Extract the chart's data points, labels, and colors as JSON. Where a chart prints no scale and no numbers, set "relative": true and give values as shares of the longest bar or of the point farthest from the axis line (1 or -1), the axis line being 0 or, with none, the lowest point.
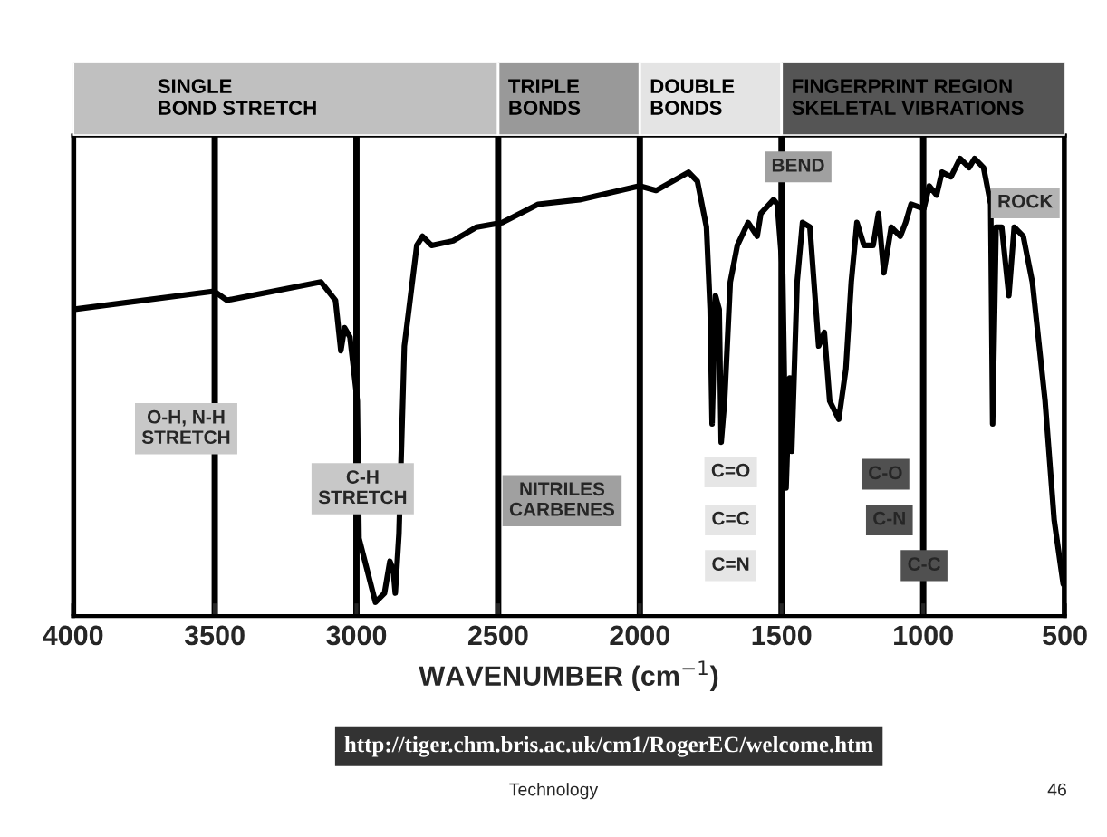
{
  "chart_data": {
    "type": "line",
    "relative": true,
    "xlabel": "WAVENUMBER (cm$^{−1}$)",
    "x": [
      4000,
      3502,
      3457,
      3125,
      3074,
      3055,
      3042,
      3023,
      2997,
      2991,
      2933,
      2901,
      2882,
      2870,
      2863,
      2850,
      2831,
      2787,
      2767,
      2735,
      2659,
      2576,
      2486,
      2359,
      2212,
      2001,
      1943,
      1828,
      1797,
      1765,
      1752,
      1745,
      1733,
      1720,
      1713,
      1701,
      1681,
      1656,
      1618,
      1586,
      1573,
      1528,
      1515,
      1496,
      1484,
      1471,
      1464,
      1445,
      1426,
      1400,
      1369,
      1349,
      1330,
      1298,
      1273,
      1254,
      1234,
      1209,
      1177,
      1158,
      1139,
      1113,
      1081,
      1062,
      1043,
      998,
      979,
      953,
      934,
      902,
      870,
      838,
      819,
      787,
      762,
      755,
      743,
      723,
      698,
      679,
      647,
      615,
      570,
      538,
      506
    ],
    "series": [
      {
        "color": "#000000",
        "values": [
          0.67,
          0.71,
          0.69,
          0.73,
          0.69,
          0.58,
          0.63,
          0.61,
          0.47,
          0.17,
          0.03,
          0.05,
          0.12,
          0.1,
          0.05,
          0.18,
          0.59,
          0.81,
          0.83,
          0.81,
          0.82,
          0.85,
          0.86,
          0.9,
          0.91,
          0.94,
          0.93,
          0.97,
          0.95,
          0.85,
          0.67,
          0.42,
          0.7,
          0.67,
          0.38,
          0.47,
          0.73,
          0.81,
          0.86,
          0.83,
          0.88,
          0.91,
          0.9,
          0.75,
          0.28,
          0.52,
          0.36,
          0.73,
          0.86,
          0.85,
          0.59,
          0.62,
          0.47,
          0.43,
          0.54,
          0.73,
          0.86,
          0.81,
          0.81,
          0.88,
          0.75,
          0.85,
          0.83,
          0.86,
          0.9,
          0.89,
          0.94,
          0.92,
          0.97,
          0.96,
          1.0,
          0.98,
          1.0,
          0.98,
          0.9,
          0.42,
          0.85,
          0.85,
          0.7,
          0.85,
          0.83,
          0.73,
          0.47,
          0.21,
          0.07
        ]
      }
    ],
    "xlim": [
      4000,
      500
    ],
    "xticks": [
      4000,
      3500,
      3000,
      2500,
      2000,
      1500,
      1000,
      500
    ],
    "grid": "x",
    "annotations": [
      "SINGLE\nBOND STRETCH",
      "TRIPLE\nBONDS",
      "DOUBLE\nBONDS",
      "FINGERPRINT REGION\nSKELETAL VIBRATIONS",
      "O-H, N-H\nSTRETCH",
      "C-H\nSTRETCH",
      "NITRILES\nCARBENES",
      "C=O",
      "C=C",
      "C=N",
      "BEND",
      "ROCK",
      "C-O",
      "C-N",
      "C-C",
      "http://tiger.chm.bris.ac.uk/cm1/RogerEC/welcome.htm",
      "Technology",
      "46"
    ]
  }
}
